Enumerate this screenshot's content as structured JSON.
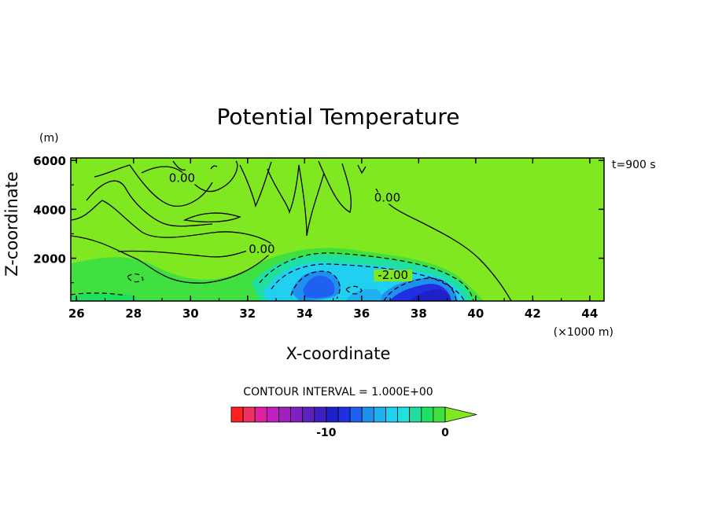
{
  "chart_data": {
    "type": "heatmap",
    "title": "Potential Temperature",
    "xlabel": "X-coordinate",
    "ylabel": "Z-coordinate",
    "x_unit": "(×1000 m)",
    "y_unit": "(m)",
    "time_label": "t=900 s",
    "xlim": [
      25.8,
      44.5
    ],
    "ylim": [
      250,
      6100
    ],
    "x_ticks": [
      26,
      28,
      30,
      32,
      34,
      36,
      38,
      40,
      42,
      44
    ],
    "y_ticks": [
      2000,
      4000,
      6000
    ],
    "contour_interval_text": "CONTOUR INTERVAL = 1.000E+00",
    "contour_labels": [
      {
        "text": "0.00",
        "x": 29.7,
        "y": 5150
      },
      {
        "text": "0.00",
        "x": 36.9,
        "y": 4350
      },
      {
        "text": "0.00",
        "x": 32.5,
        "y": 2250
      },
      {
        "text": "-2.00",
        "x": 37.1,
        "y": 1180
      }
    ],
    "colorbar": {
      "colors": [
        "#ff2020",
        "#f03060",
        "#e020a0",
        "#c020c0",
        "#a020c0",
        "#8020c0",
        "#6020c0",
        "#4020c0",
        "#2020c8",
        "#2030e0",
        "#2060f0",
        "#2090f0",
        "#20b0f0",
        "#20d0f0",
        "#20e0e0",
        "#20e0a0",
        "#20e060",
        "#40e040"
      ],
      "over_color": "#80e820",
      "tick_labels": [
        {
          "text": "-10",
          "value": -10
        },
        {
          "text": "0",
          "value": 0
        }
      ],
      "vmin": -18,
      "vmax": 0
    },
    "field_background_color": "#80e820"
  }
}
